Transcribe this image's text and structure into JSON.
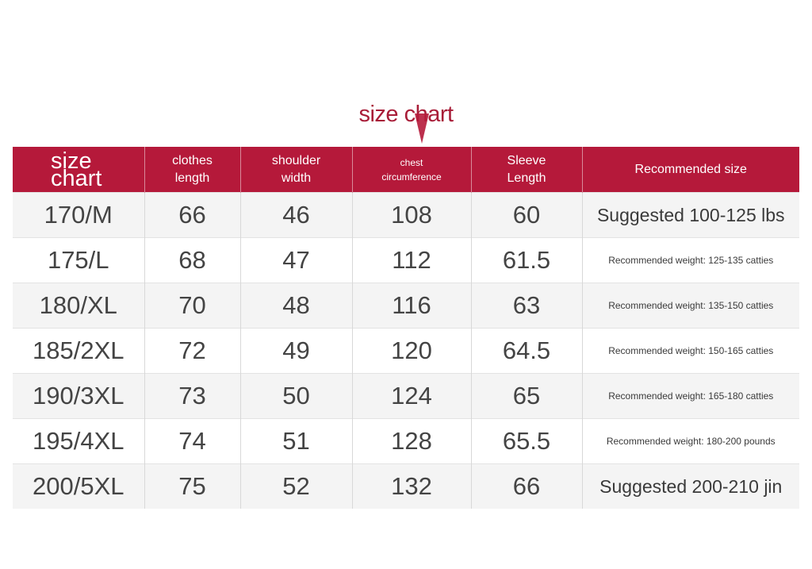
{
  "title": "size chart",
  "headers": {
    "size": "size chart",
    "clothes_length_1": "clothes",
    "clothes_length_2": "length",
    "shoulder_width_1": "shoulder",
    "shoulder_width_2": "width",
    "chest_1": "chest",
    "chest_2": "circumference",
    "sleeve_1": "Sleeve",
    "sleeve_2": "Length",
    "recommended": "Recommended size"
  },
  "rows": [
    {
      "size": "170/M",
      "length": "66",
      "shoulder": "46",
      "chest": "108",
      "sleeve": "60",
      "recommended": "Suggested 100-125 lbs"
    },
    {
      "size": "175/L",
      "length": "68",
      "shoulder": "47",
      "chest": "112",
      "sleeve": "61.5",
      "recommended": "Recommended weight: 125-135 catties"
    },
    {
      "size": "180/XL",
      "length": "70",
      "shoulder": "48",
      "chest": "116",
      "sleeve": "63",
      "recommended": "Recommended weight: 135-150 catties"
    },
    {
      "size": "185/2XL",
      "length": "72",
      "shoulder": "49",
      "chest": "120",
      "sleeve": "64.5",
      "recommended": "Recommended weight: 150-165 catties"
    },
    {
      "size": "190/3XL",
      "length": "73",
      "shoulder": "50",
      "chest": "124",
      "sleeve": "65",
      "recommended": "Recommended weight: 165-180 catties"
    },
    {
      "size": "195/4XL",
      "length": "74",
      "shoulder": "51",
      "chest": "128",
      "sleeve": "65.5",
      "recommended": "Recommended weight: 180-200 pounds"
    },
    {
      "size": "200/5XL",
      "length": "75",
      "shoulder": "52",
      "chest": "132",
      "sleeve": "66",
      "recommended": "Suggested 200-210 jin"
    }
  ],
  "colors": {
    "header_bg": "#b5193a",
    "title_text": "#a81d38",
    "cell_text": "#444444"
  },
  "icons": {
    "title_marker": "red-pointer-icon"
  }
}
